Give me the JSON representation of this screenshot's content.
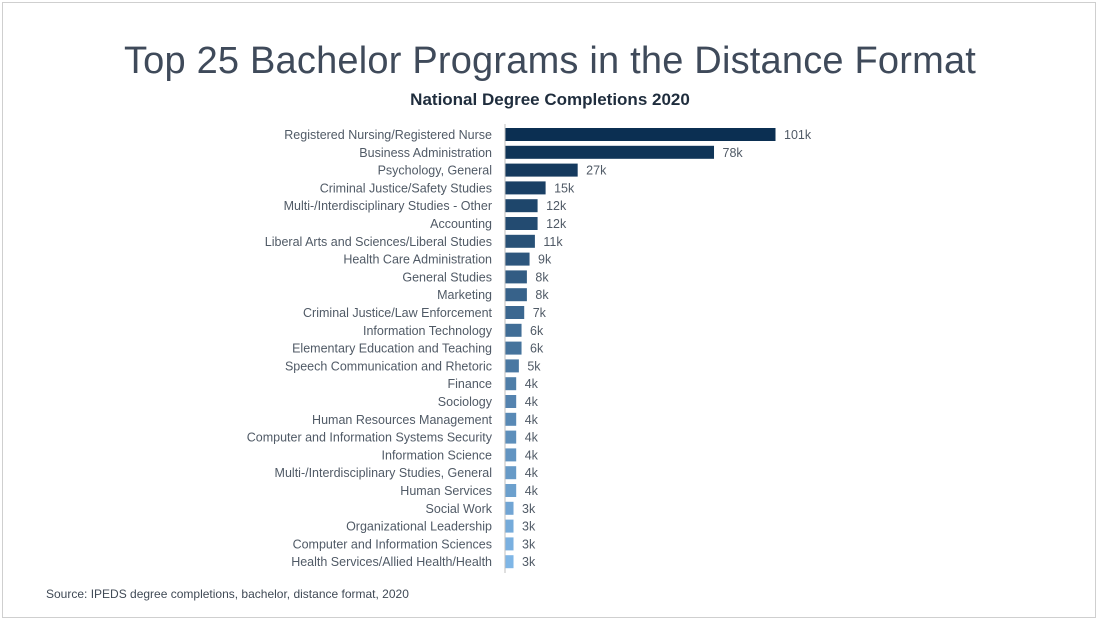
{
  "chart_data": {
    "type": "bar",
    "orientation": "horizontal",
    "title": "Top 25 Bachelor Programs in the Distance Format",
    "subtitle": "National Degree Completions 2020",
    "xlabel": "",
    "ylabel": "",
    "xlim": [
      0,
      101
    ],
    "grid": false,
    "legend": "none",
    "categories": [
      "Registered Nursing/Registered Nurse",
      "Business Administration",
      "Psychology, General",
      "Criminal Justice/Safety Studies",
      "Multi-/Interdisciplinary Studies - Other",
      "Accounting",
      "Liberal Arts and Sciences/Liberal Studies",
      "Health Care Administration",
      "General Studies",
      "Marketing",
      "Criminal Justice/Law Enforcement",
      "Information Technology",
      "Elementary Education and Teaching",
      "Speech Communication and Rhetoric",
      "Finance",
      "Sociology",
      "Human Resources Management",
      "Computer and Information Systems Security",
      "Information Science",
      "Multi-/Interdisciplinary Studies, General",
      "Human Services",
      "Social Work",
      "Organizational Leadership",
      "Computer and Information Sciences",
      "Health Services/Allied Health/Health"
    ],
    "values": [
      101,
      78,
      27,
      15,
      12,
      12,
      11,
      9,
      8,
      8,
      7,
      6,
      6,
      5,
      4,
      4,
      4,
      4,
      4,
      4,
      4,
      3,
      3,
      3,
      3
    ],
    "value_labels": [
      "101k",
      "78k",
      "27k",
      "15k",
      "12k",
      "12k",
      "11k",
      "9k",
      "8k",
      "8k",
      "7k",
      "6k",
      "6k",
      "5k",
      "4k",
      "4k",
      "4k",
      "4k",
      "4k",
      "4k",
      "4k",
      "3k",
      "3k",
      "3k",
      "3k"
    ],
    "color_start": "#0b2f52",
    "color_end": "#7fb6e6"
  },
  "source": "Source: IPEDS degree completions, bachelor, distance format, 2020"
}
